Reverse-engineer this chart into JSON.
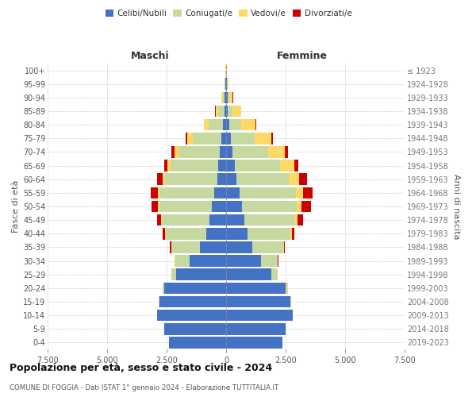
{
  "age_groups": [
    "0-4",
    "5-9",
    "10-14",
    "15-19",
    "20-24",
    "25-29",
    "30-34",
    "35-39",
    "40-44",
    "45-49",
    "50-54",
    "55-59",
    "60-64",
    "65-69",
    "70-74",
    "75-79",
    "80-84",
    "85-89",
    "90-94",
    "95-99",
    "100+"
  ],
  "birth_years": [
    "2019-2023",
    "2014-2018",
    "2009-2013",
    "2004-2008",
    "1999-2003",
    "1994-1998",
    "1989-1993",
    "1984-1988",
    "1979-1983",
    "1974-1978",
    "1969-1973",
    "1964-1968",
    "1959-1963",
    "1954-1958",
    "1949-1953",
    "1944-1948",
    "1939-1943",
    "1934-1938",
    "1929-1933",
    "1924-1928",
    "≤ 1923"
  ],
  "colors": {
    "single": "#4472C4",
    "married": "#C5D9A0",
    "widowed": "#FFD966",
    "divorced": "#CC0000"
  },
  "males": {
    "single": [
      2400,
      2600,
      2900,
      2800,
      2600,
      2100,
      1550,
      1100,
      850,
      700,
      600,
      500,
      380,
      320,
      280,
      200,
      120,
      80,
      60,
      30,
      10
    ],
    "married": [
      5,
      5,
      10,
      30,
      60,
      200,
      600,
      1200,
      1700,
      2000,
      2200,
      2300,
      2200,
      2000,
      1700,
      1200,
      600,
      250,
      80,
      30,
      5
    ],
    "widowed": [
      0,
      0,
      0,
      5,
      5,
      5,
      5,
      10,
      20,
      40,
      60,
      80,
      100,
      150,
      200,
      220,
      200,
      120,
      60,
      20,
      5
    ],
    "divorced": [
      0,
      0,
      0,
      0,
      5,
      5,
      20,
      50,
      80,
      150,
      280,
      300,
      220,
      130,
      120,
      80,
      20,
      10,
      5,
      0,
      0
    ]
  },
  "females": {
    "single": [
      2350,
      2500,
      2800,
      2700,
      2500,
      1900,
      1450,
      1100,
      900,
      780,
      680,
      570,
      430,
      350,
      280,
      200,
      130,
      80,
      60,
      30,
      10
    ],
    "married": [
      5,
      5,
      10,
      25,
      80,
      250,
      700,
      1300,
      1800,
      2100,
      2300,
      2350,
      2200,
      1900,
      1500,
      1000,
      500,
      200,
      70,
      20,
      5
    ],
    "widowed": [
      0,
      0,
      0,
      5,
      5,
      10,
      15,
      30,
      50,
      120,
      200,
      300,
      450,
      600,
      700,
      700,
      600,
      350,
      150,
      50,
      10
    ],
    "divorced": [
      0,
      0,
      0,
      0,
      5,
      5,
      20,
      50,
      100,
      220,
      370,
      420,
      310,
      180,
      120,
      80,
      30,
      10,
      5,
      0,
      0
    ]
  },
  "xlim": 7500,
  "xticks": [
    -7500,
    -5000,
    -2500,
    0,
    2500,
    5000,
    7500
  ],
  "xticklabels": [
    "7.500",
    "5.000",
    "2.500",
    "0",
    "2.500",
    "5.000",
    "7.500"
  ],
  "title": "Popolazione per età, sesso e stato civile - 2024",
  "subtitle": "COMUNE DI FOGGIA - Dati ISTAT 1° gennaio 2024 - Elaborazione TUTTITALIA.IT",
  "ylabel_left": "Fasce di età",
  "ylabel_right": "Anni di nascita",
  "header_male": "Maschi",
  "header_female": "Femmine",
  "bg_color": "#FFFFFF",
  "grid_color": "#CCCCCC",
  "bar_height": 0.85
}
